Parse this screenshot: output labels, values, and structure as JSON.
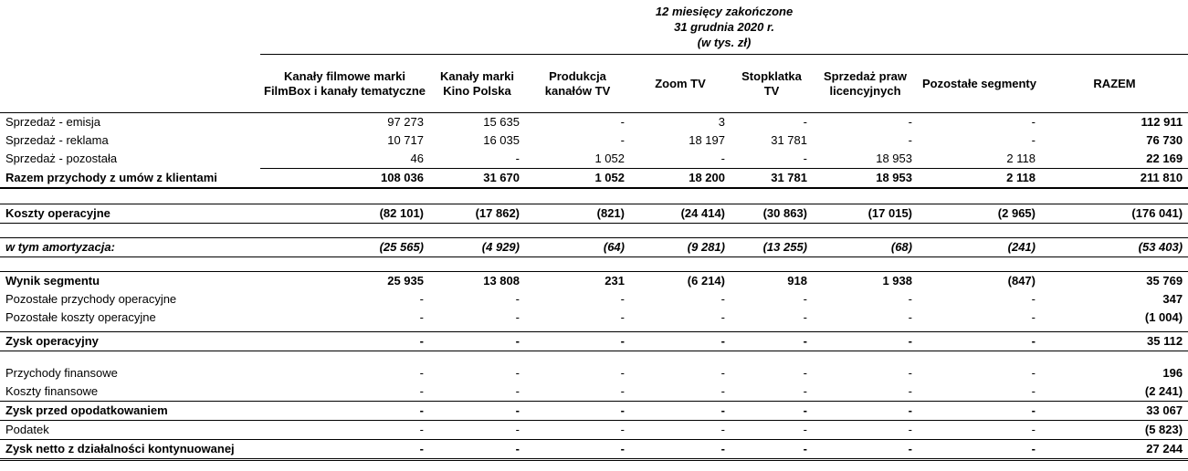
{
  "colors": {
    "text": "#000000",
    "background": "#ffffff",
    "border": "#000000"
  },
  "title": {
    "line1": "12 miesięcy zakończone",
    "line2": "31 grudnia 2020 r.",
    "line3": "(w tys. zł)"
  },
  "table": {
    "columns": [
      "Kanały filmowe marki\nFilmBox i kanały tematyczne",
      "Kanały marki\nKino Polska",
      "Produkcja\nkanałów TV",
      "Zoom TV",
      "Stopklatka\nTV",
      "Sprzedaż praw\nlicencyjnych",
      "Pozostałe segmenty",
      "RAZEM"
    ],
    "rows": [
      {
        "label": "Sprzedaż - emisja",
        "values": [
          "97 273",
          "15 635",
          "-",
          "3",
          "-",
          "-",
          "-",
          "112 911"
        ]
      },
      {
        "label": "Sprzedaż - reklama",
        "values": [
          "10 717",
          "16 035",
          "-",
          "18 197",
          "31 781",
          "-",
          "-",
          "76 730"
        ]
      },
      {
        "label": "Sprzedaż - pozostała",
        "values": [
          "46",
          "-",
          "1 052",
          "-",
          "-",
          "18 953",
          "2 118",
          "22 169"
        ],
        "border_bottom": "num"
      },
      {
        "label": "Razem przychody z umów z klientami",
        "values": [
          "108 036",
          "31 670",
          "1 052",
          "18 200",
          "31 781",
          "18 953",
          "2 118",
          "211 810"
        ],
        "bold": true,
        "border_bottom": "thick"
      },
      {
        "type": "spacer",
        "height": 17
      },
      {
        "label": "Koszty operacyjne",
        "values": [
          "(82 101)",
          "(17 862)",
          "(821)",
          "(24 414)",
          "(30 863)",
          "(17 015)",
          "(2 965)",
          "(176 041)"
        ],
        "bold": true,
        "border_top": true,
        "border_bottom": "full"
      },
      {
        "type": "spacer",
        "height": 16
      },
      {
        "label": "w tym amortyzacja:",
        "values": [
          "(25 565)",
          "(4 929)",
          "(64)",
          "(9 281)",
          "(13 255)",
          "(68)",
          "(241)",
          "(53 403)"
        ],
        "bold": true,
        "italic": true,
        "border_top": true,
        "border_bottom": "full"
      },
      {
        "type": "spacer",
        "height": 16
      },
      {
        "label": "Wynik segmentu",
        "values": [
          "25 935",
          "13 808",
          "231",
          "(6 214)",
          "918",
          "1 938",
          "(847)",
          "35 769"
        ],
        "bold": true,
        "border_top": true
      },
      {
        "label": "Pozostałe przychody operacyjne",
        "values": [
          "-",
          "-",
          "-",
          "-",
          "-",
          "-",
          "-",
          "347"
        ]
      },
      {
        "label": "Pozostałe koszty operacyjne",
        "values": [
          "-",
          "-",
          "-",
          "-",
          "-",
          "-",
          "-",
          "(1 004)"
        ]
      },
      {
        "type": "spacer",
        "height": 6
      },
      {
        "label": "Zysk operacyjny",
        "values": [
          "-",
          "-",
          "-",
          "-",
          "-",
          "-",
          "-",
          "35 112"
        ],
        "bold": true,
        "border_top": true,
        "border_bottom": "full"
      },
      {
        "type": "spacer",
        "height": 14
      },
      {
        "label": "Przychody finansowe",
        "values": [
          "-",
          "-",
          "-",
          "-",
          "-",
          "-",
          "-",
          "196"
        ]
      },
      {
        "label": "Koszty finansowe",
        "values": [
          "-",
          "-",
          "-",
          "-",
          "-",
          "-",
          "-",
          "(2 241)"
        ]
      },
      {
        "label": "Zysk przed opodatkowaniem",
        "values": [
          "-",
          "-",
          "-",
          "-",
          "-",
          "-",
          "-",
          "33 067"
        ],
        "bold": true,
        "border_top": true,
        "border_bottom": "full"
      },
      {
        "label": "Podatek",
        "values": [
          "-",
          "-",
          "-",
          "-",
          "-",
          "-",
          "-",
          "(5 823)"
        ],
        "border_bottom": "full"
      },
      {
        "label": "Zysk netto z działalności kontynuowanej",
        "values": [
          "-",
          "-",
          "-",
          "-",
          "-",
          "-",
          "-",
          "27 244"
        ],
        "bold": true,
        "border_bottom": "double"
      }
    ]
  }
}
